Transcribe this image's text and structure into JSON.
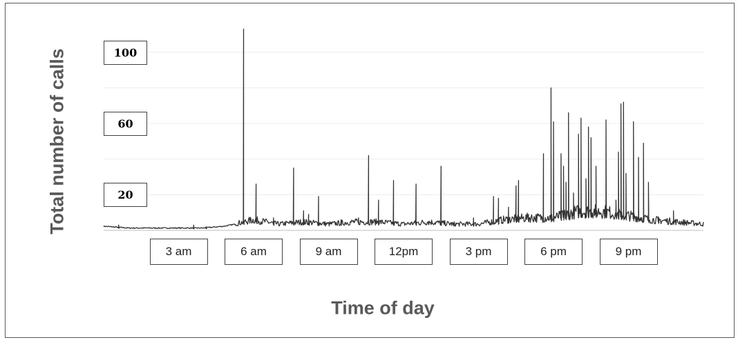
{
  "chart_data": {
    "type": "line",
    "title": "",
    "xlabel": "Time of day",
    "ylabel": "Total number of calls",
    "ylim": [
      0,
      115
    ],
    "xlim": [
      1.0,
      25.0
    ],
    "grid": true,
    "legend": "none",
    "line_color": "#333333",
    "gridline_color": "#ececec",
    "yticks": [
      {
        "value": 100,
        "label": "100"
      },
      {
        "value": 60,
        "label": "60"
      },
      {
        "value": 20,
        "label": "20"
      }
    ],
    "xticks": [
      {
        "value": 4.0,
        "label": "3 am"
      },
      {
        "value": 7.0,
        "label": "6 am"
      },
      {
        "value": 10.0,
        "label": "9 am"
      },
      {
        "value": 13.0,
        "label": "12pm"
      },
      {
        "value": 16.0,
        "label": "3 pm"
      },
      {
        "value": 19.0,
        "label": "6 pm"
      },
      {
        "value": 22.0,
        "label": "9 pm"
      }
    ],
    "baseline": [
      [
        1.0,
        2
      ],
      [
        2.0,
        1
      ],
      [
        3.0,
        1
      ],
      [
        4.0,
        1
      ],
      [
        5.0,
        1
      ],
      [
        5.8,
        2
      ],
      [
        6.2,
        3
      ],
      [
        7.0,
        5
      ],
      [
        8.0,
        3
      ],
      [
        9.0,
        4
      ],
      [
        10.0,
        3
      ],
      [
        11.0,
        4
      ],
      [
        12.0,
        4
      ],
      [
        13.0,
        3
      ],
      [
        14.0,
        4
      ],
      [
        15.0,
        3
      ],
      [
        16.0,
        3
      ],
      [
        17.0,
        5
      ],
      [
        18.0,
        6
      ],
      [
        19.0,
        6
      ],
      [
        20.0,
        9
      ],
      [
        21.0,
        9
      ],
      [
        22.0,
        7
      ],
      [
        23.0,
        5
      ],
      [
        24.0,
        4
      ],
      [
        25.0,
        3
      ]
    ],
    "peaks": [
      [
        1.6,
        3
      ],
      [
        4.6,
        3
      ],
      [
        5.1,
        2
      ],
      [
        6.6,
        113
      ],
      [
        7.1,
        26
      ],
      [
        7.8,
        7
      ],
      [
        8.6,
        35
      ],
      [
        9.0,
        11
      ],
      [
        9.2,
        9
      ],
      [
        9.6,
        19
      ],
      [
        10.5,
        6
      ],
      [
        11.2,
        7
      ],
      [
        11.6,
        42
      ],
      [
        12.0,
        17
      ],
      [
        12.6,
        28
      ],
      [
        13.5,
        26
      ],
      [
        14.0,
        5
      ],
      [
        14.5,
        36
      ],
      [
        15.0,
        4
      ],
      [
        15.8,
        7
      ],
      [
        16.6,
        19
      ],
      [
        16.8,
        18
      ],
      [
        17.2,
        13
      ],
      [
        17.5,
        25
      ],
      [
        17.6,
        28
      ],
      [
        18.0,
        9
      ],
      [
        18.6,
        43
      ],
      [
        18.9,
        80
      ],
      [
        19.0,
        61
      ],
      [
        19.3,
        43
      ],
      [
        19.4,
        36
      ],
      [
        19.5,
        27
      ],
      [
        19.6,
        66
      ],
      [
        19.8,
        21
      ],
      [
        20.0,
        54
      ],
      [
        20.1,
        63
      ],
      [
        20.3,
        29
      ],
      [
        20.4,
        58
      ],
      [
        20.5,
        52
      ],
      [
        20.7,
        36
      ],
      [
        21.1,
        62
      ],
      [
        21.5,
        17
      ],
      [
        21.6,
        44
      ],
      [
        21.7,
        71
      ],
      [
        21.8,
        72
      ],
      [
        21.9,
        32
      ],
      [
        22.2,
        61
      ],
      [
        22.4,
        41
      ],
      [
        22.6,
        49
      ],
      [
        22.8,
        27
      ],
      [
        23.2,
        6
      ],
      [
        23.8,
        11
      ],
      [
        24.2,
        6
      ]
    ]
  }
}
